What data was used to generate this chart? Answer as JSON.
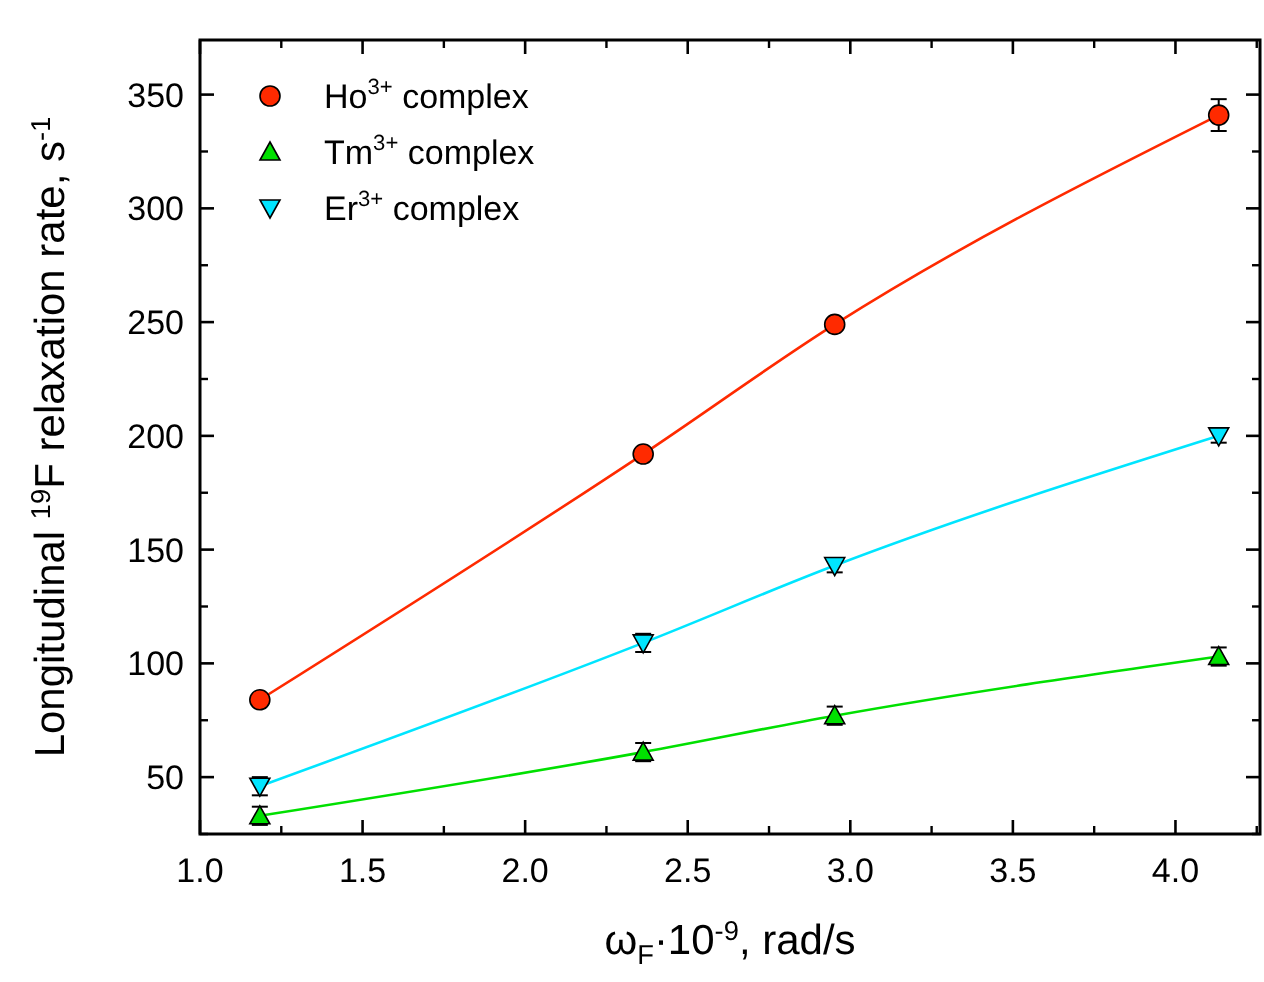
{
  "chart_data": {
    "type": "line",
    "xlabel": "ω$_{F}$·10$^{-9}$, rad/s",
    "ylabel": "Longitudinal $^{19}$F relaxation rate, s$^{-1}$",
    "x": [
      1.184,
      2.363,
      2.952,
      4.133
    ],
    "xlim": [
      1.0,
      4.26
    ],
    "xticks": [
      {
        "value": 1,
        "label": "1.0"
      },
      {
        "value": 1.5,
        "label": "1.5"
      },
      {
        "value": 2,
        "label": "2.0"
      },
      {
        "value": 2.5,
        "label": "2.5"
      },
      {
        "value": 3,
        "label": "3.0"
      },
      {
        "value": 3.5,
        "label": "3.5"
      },
      {
        "value": 4,
        "label": "4.0"
      }
    ],
    "ylim": [
      25,
      374
    ],
    "yticks": [
      50,
      100,
      150,
      200,
      250,
      300,
      350
    ],
    "grid": false,
    "legend": "top left",
    "line_style": "solid",
    "series": [
      {
        "name": "Ho$^{3+}$ complex",
        "color": "#ff2a00",
        "marker": "circle",
        "values": [
          84,
          192,
          249,
          341
        ],
        "errors": [
          2,
          2,
          2,
          7
        ]
      },
      {
        "name": "Tm$^{3+}$ complex",
        "color": "#00e000",
        "marker": "triangle",
        "values": [
          33,
          61,
          77,
          103
        ],
        "errors": [
          4,
          4,
          4,
          4
        ]
      },
      {
        "name": "Er$^{3+}$ complex",
        "color": "#00e5ff",
        "marker": "triangle-down",
        "values": [
          46,
          109,
          143,
          200
        ],
        "errors": [
          4,
          4,
          3,
          3
        ]
      }
    ]
  }
}
